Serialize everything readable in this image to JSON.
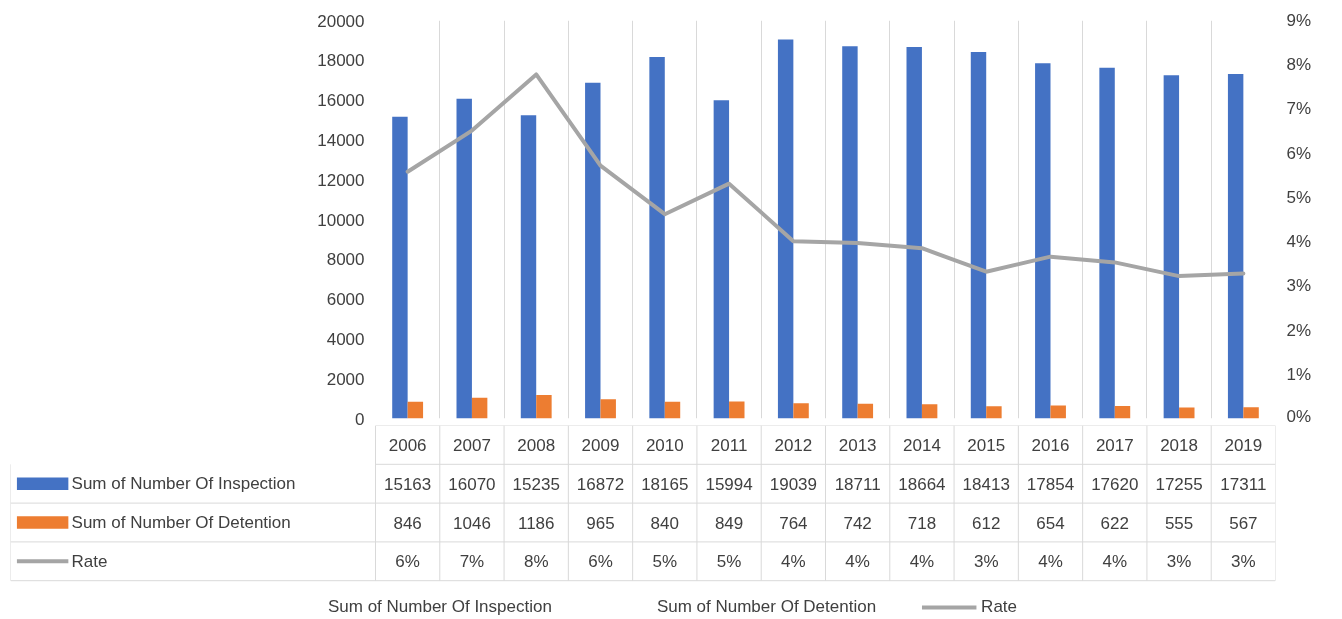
{
  "chart_data": {
    "type": "bar",
    "categories": [
      "2006",
      "2007",
      "2008",
      "2009",
      "2010",
      "2011",
      "2012",
      "2013",
      "2014",
      "2015",
      "2016",
      "2017",
      "2018",
      "2019"
    ],
    "series": [
      {
        "name": "Sum of Number Of Inspection",
        "color": "#4472c4",
        "values": [
          15163,
          16070,
          15235,
          16872,
          18165,
          15994,
          19039,
          18711,
          18664,
          18413,
          17854,
          17620,
          17255,
          17311
        ]
      },
      {
        "name": "Sum of Number Of Detention",
        "color": "#ed7d31",
        "values": [
          846,
          1046,
          1186,
          965,
          840,
          849,
          764,
          742,
          718,
          612,
          654,
          622,
          555,
          567
        ]
      },
      {
        "name": "Rate",
        "type": "line",
        "axis": "y2",
        "color": "#a5a5a5",
        "values": [
          5.58,
          6.51,
          7.78,
          5.72,
          4.62,
          5.31,
          4.01,
          3.97,
          3.85,
          3.32,
          3.66,
          3.53,
          3.22,
          3.28
        ],
        "value_labels": [
          "6%",
          "7%",
          "8%",
          "6%",
          "5%",
          "5%",
          "4%",
          "4%",
          "4%",
          "3%",
          "4%",
          "4%",
          "3%",
          "3%"
        ]
      }
    ],
    "ylim": [
      0,
      20000
    ],
    "yticks": [
      0,
      2000,
      4000,
      6000,
      8000,
      10000,
      12000,
      14000,
      16000,
      18000,
      20000
    ],
    "y2lim": [
      0,
      9
    ],
    "y2ticks": [
      {
        "value": 0,
        "label": "0%"
      },
      {
        "value": 1,
        "label": "1%"
      },
      {
        "value": 2,
        "label": "2%"
      },
      {
        "value": 3,
        "label": "3%"
      },
      {
        "value": 4,
        "label": "4%"
      },
      {
        "value": 5,
        "label": "5%"
      },
      {
        "value": 6,
        "label": "6%"
      },
      {
        "value": 7,
        "label": "7%"
      },
      {
        "value": 8,
        "label": "8%"
      },
      {
        "value": 9,
        "label": "9%"
      }
    ],
    "data_labels": true,
    "grid": "x",
    "legend": "bottom",
    "line_style": "solid",
    "marker": "none"
  }
}
